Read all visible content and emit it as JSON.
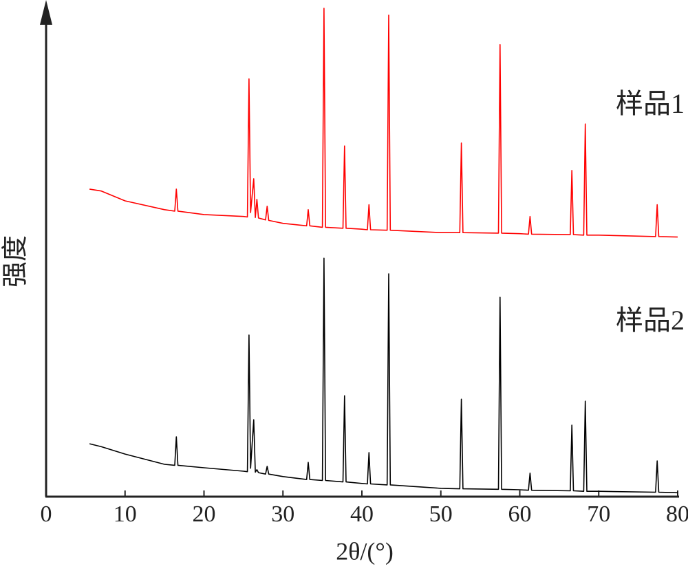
{
  "chart_data": {
    "type": "line",
    "x_label": "2θ/(°)",
    "y_label": "强度",
    "xlim": [
      0,
      80
    ],
    "xticks": [
      0,
      10,
      20,
      30,
      40,
      50,
      60,
      70,
      80
    ],
    "ylim": [
      0,
      100
    ],
    "x": [
      5.5,
      7,
      10,
      15,
      16.3,
      16.5,
      16.7,
      20,
      25,
      25.5,
      25.7,
      25.9,
      26.3,
      26.5,
      26.7,
      26.9,
      27.8,
      28,
      28.2,
      30,
      33,
      33.2,
      33.4,
      35,
      35.2,
      35.4,
      37.6,
      37.8,
      38,
      40,
      40.7,
      40.9,
      41.1,
      43.2,
      43.4,
      43.6,
      50,
      52.4,
      52.6,
      52.8,
      57.3,
      57.5,
      57.7,
      60,
      61.1,
      61.3,
      61.5,
      66.4,
      66.6,
      66.8,
      68.1,
      68.3,
      68.5,
      70,
      77.2,
      77.4,
      77.6,
      80
    ],
    "series": [
      {
        "name": "样品1",
        "color": "#ff0000",
        "values": [
          62.8,
          62.4,
          60.4,
          58.6,
          58.3,
          62.8,
          58.3,
          57.6,
          57.2,
          57.1,
          85.3,
          58,
          64.9,
          57,
          60.7,
          56.9,
          56.5,
          59.3,
          56.4,
          55.8,
          55.3,
          58.6,
          55.3,
          55,
          99.7,
          55,
          54.8,
          71.6,
          54.8,
          54.6,
          54.5,
          59.6,
          54.5,
          54.4,
          98.3,
          54.4,
          53.9,
          53.9,
          72.2,
          53.9,
          53.8,
          92.3,
          53.8,
          53.7,
          53.6,
          57.2,
          53.6,
          53.5,
          66.6,
          53.5,
          53.4,
          76.1,
          53.4,
          53.4,
          53.1,
          59.6,
          53.1,
          53.0
        ]
      },
      {
        "name": "样品2",
        "color": "#000000",
        "values": [
          10.8,
          10.2,
          8.7,
          6.6,
          6.4,
          12.2,
          6.4,
          5.9,
          5.2,
          5.1,
          33,
          5.8,
          15.7,
          5,
          5.5,
          4.9,
          4.6,
          6.2,
          4.6,
          4.1,
          3.5,
          7,
          3.5,
          3.3,
          48.7,
          3.3,
          3.0,
          20.6,
          3.0,
          2.7,
          2.6,
          9,
          2.6,
          2.4,
          45.5,
          2.4,
          1.7,
          1.6,
          19.9,
          1.6,
          1.5,
          40.7,
          1.5,
          1.4,
          1.3,
          4.8,
          1.3,
          1.2,
          14.6,
          1.2,
          1.1,
          19.5,
          1.1,
          1.1,
          0.9,
          7.3,
          0.9,
          0.8
        ]
      }
    ]
  }
}
